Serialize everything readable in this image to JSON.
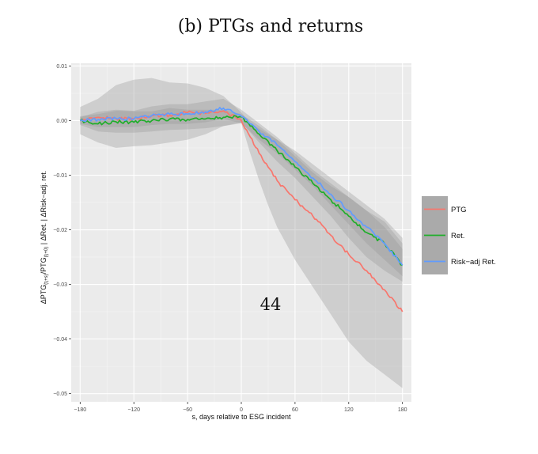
{
  "page_number": "44",
  "colors": {
    "panel_bg": "#ebebeb",
    "grid_major": "#ffffff",
    "ribbon": "#999999",
    "legend_key_bg": "#aaaaaa",
    "ptg": "#f8766d",
    "ret": "#1fae2a",
    "risk_adj": "#619cff"
  },
  "chart_data": {
    "type": "line",
    "title": "(b) PTGs and returns",
    "xlabel": "s, days relative to ESG incident",
    "ylabel": "ΔPTG(t_i+s)/PTG(t_i+0) | ΔRet. | ΔRisk−adj. ret.",
    "ylabel_parts": {
      "a": "ΔPTG",
      "sub1": "(t",
      "sub2": "i",
      "sub3": "+s)",
      "b": "/PTG",
      "sub4": "(t",
      "sub5": "i",
      "sub6": "+0)",
      "c": " | ΔRet. | ΔRisk−adj. ret."
    },
    "xlim": [
      -190,
      190
    ],
    "ylim": [
      -0.0515,
      0.0105
    ],
    "x_ticks": [
      -180,
      -120,
      -60,
      0,
      60,
      120,
      180
    ],
    "x_tick_labels": [
      "−180",
      "−120",
      "−60",
      "0",
      "60",
      "120",
      "180"
    ],
    "y_ticks": [
      0.01,
      0.0,
      -0.01,
      -0.02,
      -0.03,
      -0.04,
      -0.05
    ],
    "y_tick_labels": [
      "0.01",
      "0.00",
      "−0.01",
      "−0.02",
      "−0.03",
      "−0.04",
      "−0.05"
    ],
    "grid": true,
    "legend_position": "right",
    "series": [
      {
        "name": "PTG",
        "color": "#f8766d",
        "x": [
          -180,
          -160,
          -140,
          -120,
          -100,
          -80,
          -60,
          -40,
          -20,
          0,
          10,
          20,
          30,
          40,
          60,
          80,
          100,
          120,
          140,
          160,
          180
        ],
        "y": [
          0.0,
          0.0006,
          0.0004,
          0.0003,
          0.0009,
          0.001,
          0.0015,
          0.0013,
          0.0018,
          0.0,
          -0.003,
          -0.006,
          -0.0085,
          -0.011,
          -0.0145,
          -0.0175,
          -0.021,
          -0.0245,
          -0.0275,
          -0.031,
          -0.035
        ],
        "lo": [
          -0.0025,
          -0.004,
          -0.005,
          -0.0047,
          -0.0045,
          -0.004,
          -0.0035,
          -0.0025,
          -0.001,
          -0.0005,
          -0.006,
          -0.011,
          -0.0155,
          -0.0195,
          -0.0255,
          -0.0305,
          -0.0355,
          -0.0405,
          -0.044,
          -0.0465,
          -0.049
        ],
        "hi": [
          0.0025,
          0.004,
          0.0065,
          0.0075,
          0.0078,
          0.007,
          0.0068,
          0.006,
          0.0045,
          0.0015,
          -0.0005,
          -0.0015,
          -0.0025,
          -0.0035,
          -0.0055,
          -0.008,
          -0.0105,
          -0.013,
          -0.0155,
          -0.018,
          -0.0215
        ]
      },
      {
        "name": "Ret.",
        "color": "#1fae2a",
        "x": [
          -180,
          -160,
          -140,
          -120,
          -100,
          -80,
          -60,
          -40,
          -20,
          0,
          20,
          40,
          60,
          80,
          100,
          120,
          140,
          160,
          180
        ],
        "y": [
          0.0,
          -0.0006,
          -0.0002,
          -0.0003,
          0.0,
          0.0003,
          0.0002,
          0.0003,
          0.0006,
          0.0007,
          -0.0025,
          -0.0055,
          -0.0085,
          -0.0115,
          -0.0145,
          -0.0175,
          -0.0205,
          -0.0225,
          -0.0265
        ],
        "lo": [
          -0.0008,
          -0.002,
          -0.0022,
          -0.0022,
          -0.002,
          -0.0017,
          -0.0016,
          -0.0014,
          -0.001,
          -0.0003,
          -0.004,
          -0.0075,
          -0.0105,
          -0.014,
          -0.0175,
          -0.0215,
          -0.025,
          -0.0275,
          -0.0295
        ],
        "hi": [
          0.0008,
          0.0012,
          0.0018,
          0.0017,
          0.0017,
          0.0023,
          0.002,
          0.002,
          0.002,
          0.0012,
          -0.001,
          -0.0035,
          -0.0065,
          -0.0095,
          -0.012,
          -0.014,
          -0.0165,
          -0.0185,
          -0.0225
        ]
      },
      {
        "name": "Risk−adj Ret.",
        "color": "#619cff",
        "x": [
          -180,
          -160,
          -140,
          -120,
          -100,
          -80,
          -60,
          -40,
          -20,
          0,
          20,
          40,
          60,
          80,
          100,
          120,
          140,
          160,
          180
        ],
        "y": [
          0.0,
          0.0002,
          0.0004,
          0.0003,
          0.0009,
          0.0012,
          0.0012,
          0.0016,
          0.0023,
          0.0008,
          -0.002,
          -0.0045,
          -0.0075,
          -0.0105,
          -0.0135,
          -0.0165,
          -0.0195,
          -0.0225,
          -0.0265
        ],
        "lo": [
          -0.0006,
          -0.0012,
          -0.0012,
          -0.0012,
          -0.0008,
          -0.0006,
          -0.0006,
          -0.0003,
          0.0003,
          -0.0005,
          -0.0035,
          -0.006,
          -0.009,
          -0.012,
          -0.0155,
          -0.019,
          -0.0225,
          -0.0255,
          -0.0285
        ],
        "hi": [
          0.0006,
          0.0016,
          0.002,
          0.0018,
          0.0026,
          0.003,
          0.003,
          0.0035,
          0.004,
          0.002,
          -0.0005,
          -0.003,
          -0.006,
          -0.009,
          -0.0115,
          -0.014,
          -0.0165,
          -0.0195,
          -0.0235
        ]
      }
    ]
  }
}
